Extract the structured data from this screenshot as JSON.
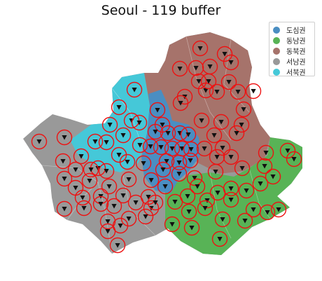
{
  "title": "Seoul - 119 buffer",
  "legend": {
    "items": [
      {
        "label": "도심권",
        "color": "#4a8ec2"
      },
      {
        "label": "동남권",
        "color": "#58b356"
      },
      {
        "label": "동북권",
        "color": "#a6736b"
      },
      {
        "label": "서남권",
        "color": "#999999"
      },
      {
        "label": "서북권",
        "color": "#45c8d8"
      }
    ]
  },
  "style": {
    "buffer_color": "#ee1111",
    "station_marker_color": "#111111"
  }
}
